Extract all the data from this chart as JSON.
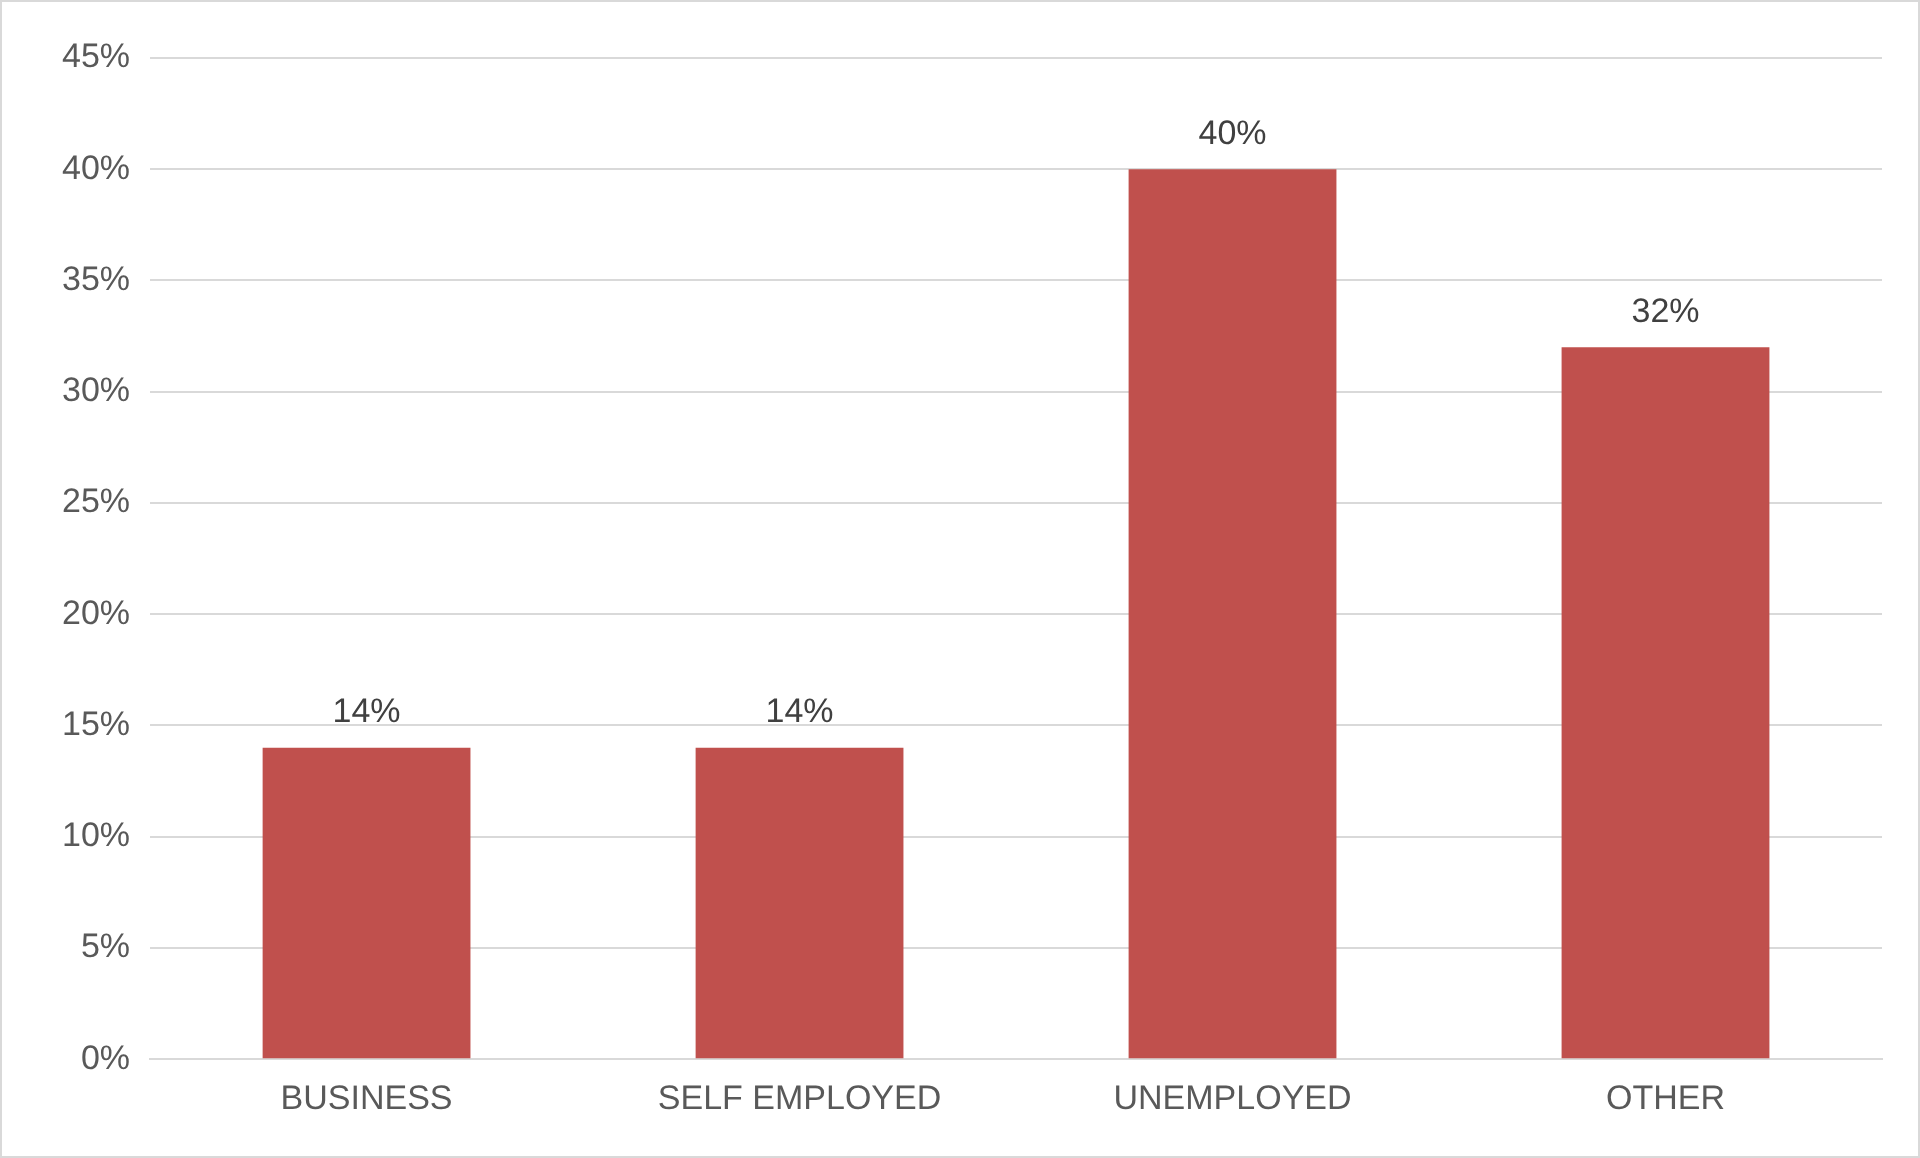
{
  "chart_data": {
    "type": "bar",
    "categories": [
      "BUSINESS",
      "SELF EMPLOYED",
      "UNEMPLOYED",
      "OTHER"
    ],
    "values": [
      14,
      14,
      40,
      32
    ],
    "color": "#c0504d",
    "value_labels": [
      "14%",
      "14%",
      "40%",
      "32%"
    ],
    "ylim": [
      0,
      45
    ],
    "yticks": [
      {
        "value": 0,
        "label": "0%"
      },
      {
        "value": 5,
        "label": "5%"
      },
      {
        "value": 10,
        "label": "10%"
      },
      {
        "value": 15,
        "label": "15%"
      },
      {
        "value": 20,
        "label": "20%"
      },
      {
        "value": 25,
        "label": "25%"
      },
      {
        "value": 30,
        "label": "30%"
      },
      {
        "value": 35,
        "label": "35%"
      },
      {
        "value": 40,
        "label": "40%"
      },
      {
        "value": 45,
        "label": "45%"
      }
    ],
    "grid": "y",
    "legend": false
  }
}
